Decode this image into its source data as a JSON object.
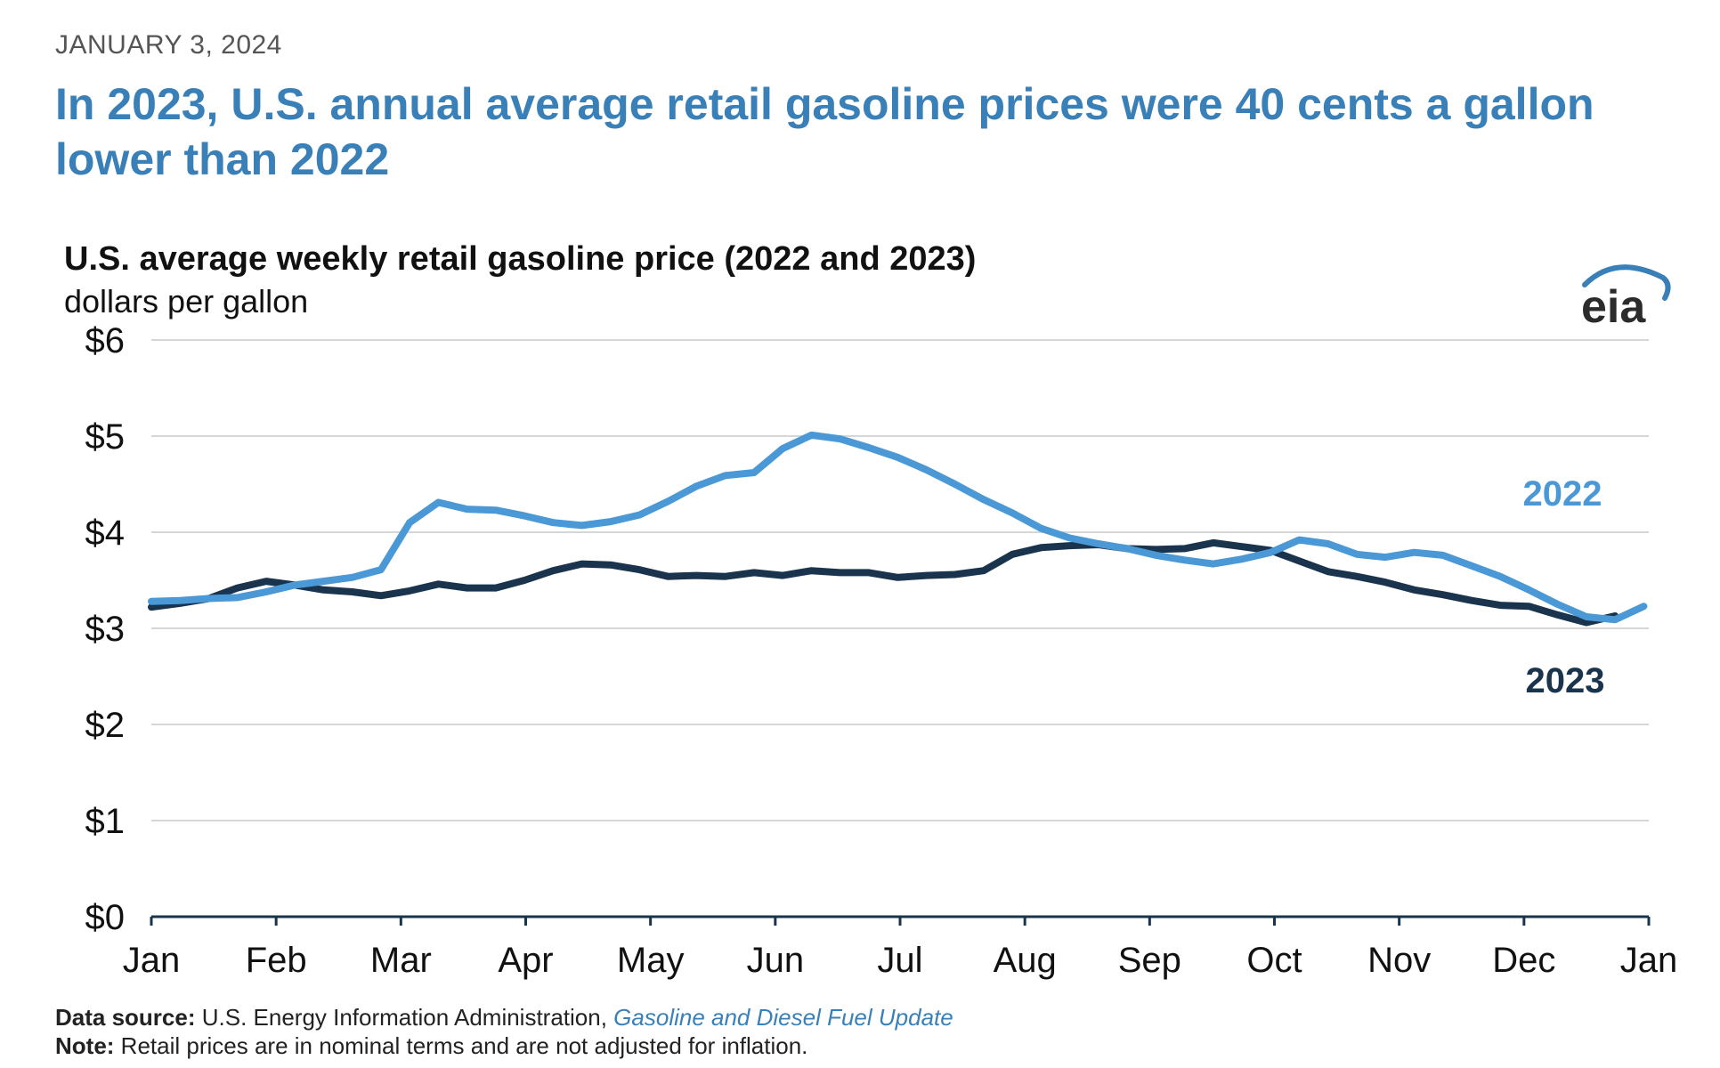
{
  "header": {
    "date": "JANUARY 3, 2024",
    "headline": "In 2023, U.S. annual average retail gasoline prices were 40 cents a gallon lower than 2022"
  },
  "logo": {
    "text": "eia",
    "color": "#3a80b8"
  },
  "footer": {
    "source_label": "Data source:",
    "source_text": "U.S. Energy Information Administration,",
    "source_link": "Gasoline and Diesel Fuel Update",
    "note_label": "Note:",
    "note_text": "Retail prices are in nominal terms and are not adjusted for inflation."
  },
  "chart_data": {
    "type": "line",
    "title": "U.S. average weekly retail gasoline price (2022 and 2023)",
    "ylabel": "dollars per gallon",
    "xlabel": "",
    "ylim": [
      0,
      6
    ],
    "yticks": [
      0,
      1,
      2,
      3,
      4,
      5,
      6
    ],
    "ytick_labels": [
      "$0",
      "$1",
      "$2",
      "$3",
      "$4",
      "$5",
      "$6"
    ],
    "xlim": [
      0,
      12
    ],
    "xticks": [
      0,
      1,
      2,
      3,
      4,
      5,
      6,
      7,
      8,
      9,
      10,
      11,
      12
    ],
    "xtick_labels": [
      "Jan",
      "Feb",
      "Mar",
      "Apr",
      "May",
      "Jun",
      "Jul",
      "Aug",
      "Sep",
      "Oct",
      "Nov",
      "Dec",
      "Jan"
    ],
    "grid": true,
    "series": [
      {
        "name": "2022",
        "color": "#4a98d6",
        "label_text": "2022",
        "x": [
          0,
          0.23,
          0.46,
          0.69,
          0.92,
          1.15,
          1.38,
          1.61,
          1.84,
          2.07,
          2.3,
          2.53,
          2.76,
          2.99,
          3.22,
          3.45,
          3.68,
          3.91,
          4.14,
          4.37,
          4.6,
          4.83,
          5.06,
          5.29,
          5.52,
          5.75,
          5.98,
          6.21,
          6.44,
          6.67,
          6.9,
          7.13,
          7.36,
          7.59,
          7.82,
          8.05,
          8.28,
          8.51,
          8.74,
          8.97,
          9.2,
          9.43,
          9.66,
          9.89,
          10.12,
          10.35,
          10.58,
          10.81,
          11.04,
          11.27,
          11.5,
          11.73,
          11.96
        ],
        "values": [
          3.28,
          3.29,
          3.31,
          3.32,
          3.38,
          3.45,
          3.49,
          3.53,
          3.61,
          4.1,
          4.31,
          4.24,
          4.23,
          4.17,
          4.1,
          4.07,
          4.11,
          4.18,
          4.32,
          4.48,
          4.59,
          4.62,
          4.87,
          5.01,
          4.97,
          4.88,
          4.78,
          4.65,
          4.5,
          4.34,
          4.2,
          4.04,
          3.94,
          3.88,
          3.83,
          3.76,
          3.71,
          3.67,
          3.72,
          3.79,
          3.92,
          3.88,
          3.77,
          3.74,
          3.79,
          3.76,
          3.65,
          3.54,
          3.4,
          3.25,
          3.12,
          3.09,
          3.23
        ]
      },
      {
        "name": "2023",
        "color": "#1a344e",
        "label_text": "2023",
        "x": [
          0,
          0.23,
          0.46,
          0.69,
          0.92,
          1.15,
          1.38,
          1.61,
          1.84,
          2.07,
          2.3,
          2.53,
          2.76,
          2.99,
          3.22,
          3.45,
          3.68,
          3.91,
          4.14,
          4.37,
          4.6,
          4.83,
          5.06,
          5.29,
          5.52,
          5.75,
          5.98,
          6.21,
          6.44,
          6.67,
          6.9,
          7.13,
          7.36,
          7.59,
          7.82,
          8.05,
          8.28,
          8.51,
          8.74,
          8.97,
          9.2,
          9.43,
          9.66,
          9.89,
          10.12,
          10.35,
          10.58,
          10.81,
          11.04,
          11.27,
          11.5,
          11.73
        ],
        "values": [
          3.22,
          3.26,
          3.31,
          3.42,
          3.49,
          3.45,
          3.4,
          3.38,
          3.34,
          3.39,
          3.46,
          3.42,
          3.42,
          3.5,
          3.6,
          3.67,
          3.66,
          3.61,
          3.54,
          3.55,
          3.54,
          3.58,
          3.55,
          3.6,
          3.58,
          3.58,
          3.53,
          3.55,
          3.56,
          3.6,
          3.77,
          3.84,
          3.86,
          3.87,
          3.83,
          3.82,
          3.83,
          3.89,
          3.85,
          3.81,
          3.7,
          3.59,
          3.54,
          3.48,
          3.4,
          3.35,
          3.29,
          3.24,
          3.23,
          3.14,
          3.06,
          3.13
        ]
      }
    ]
  }
}
